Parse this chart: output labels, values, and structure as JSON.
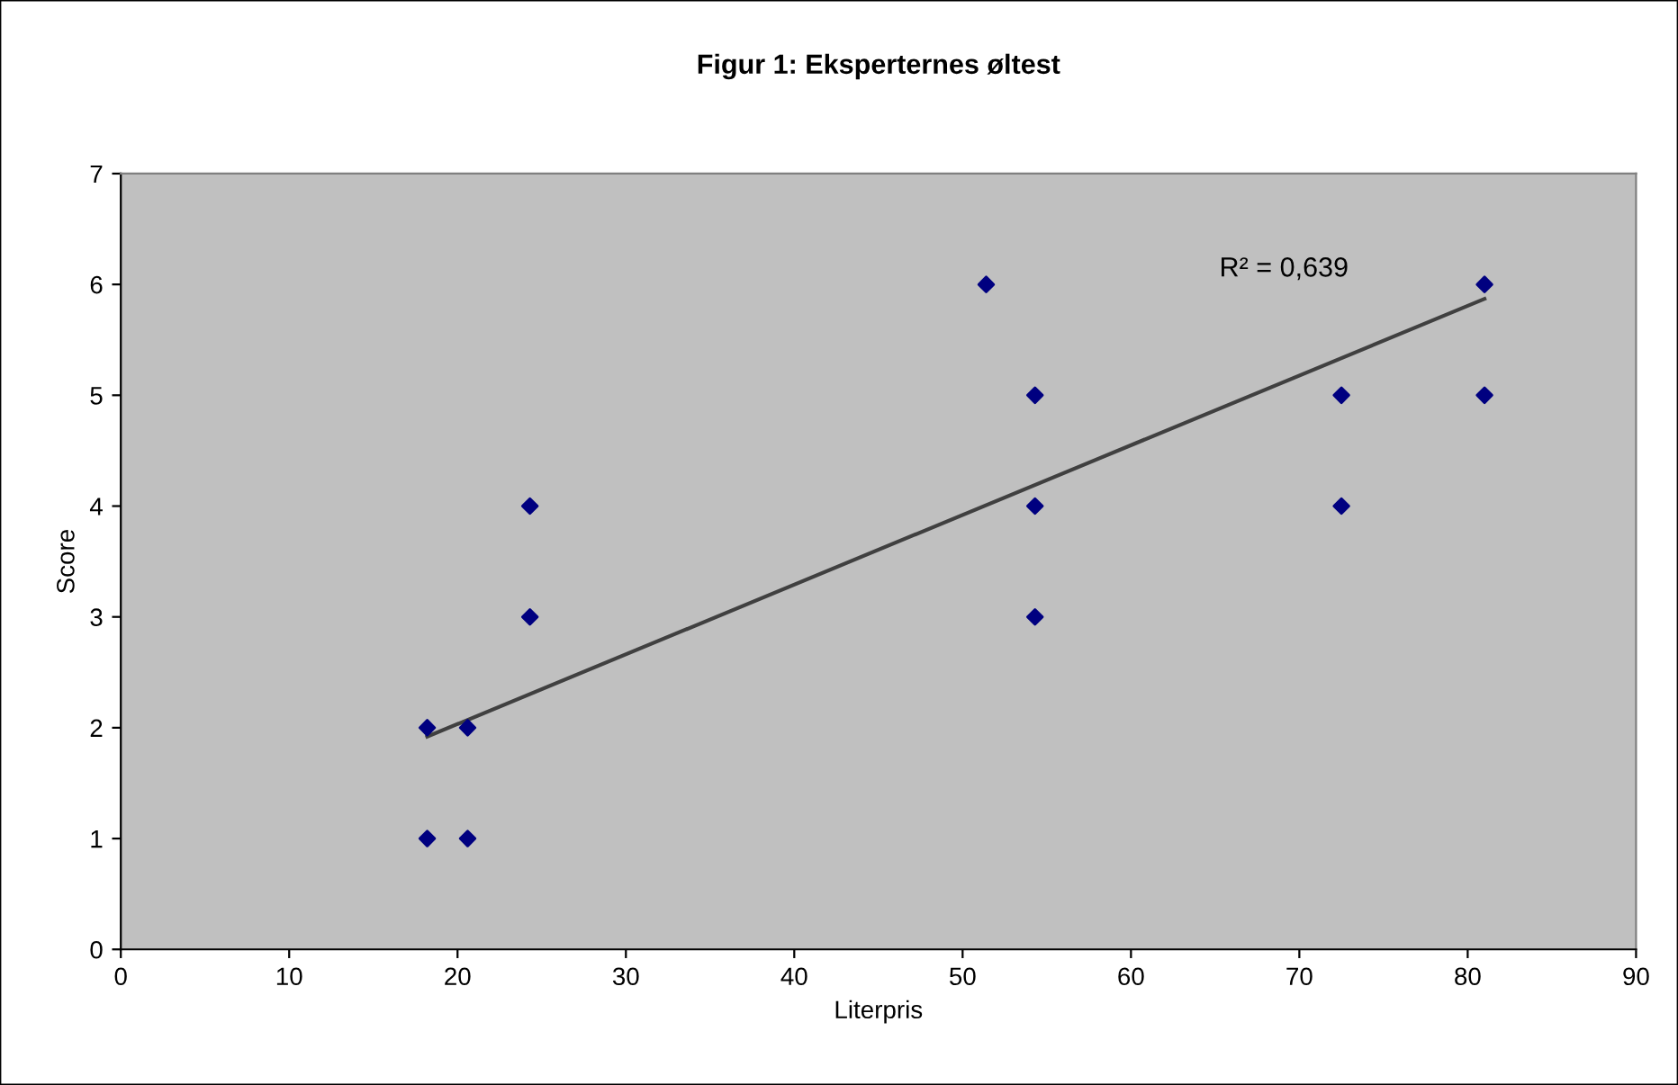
{
  "chart_data": {
    "type": "scatter",
    "title": "Figur 1: Eksperternes øltest",
    "xlabel": "Literpris",
    "ylabel": "Score",
    "xlim": [
      0,
      90
    ],
    "xticks": [
      0,
      10,
      20,
      30,
      40,
      50,
      60,
      70,
      80,
      90
    ],
    "ylim": [
      0,
      7
    ],
    "yticks": [
      0,
      1,
      2,
      3,
      4,
      5,
      6,
      7
    ],
    "grid": false,
    "legend": false,
    "series": [
      {
        "marker": "diamond",
        "color": "#000080",
        "x": [
          18.2,
          18.2,
          20.6,
          20.6,
          24.3,
          24.3,
          51.4,
          54.3,
          54.3,
          54.3,
          72.5,
          72.5,
          81.0,
          81.0
        ],
        "values": [
          2,
          1,
          2,
          1,
          4,
          3,
          6,
          5,
          4,
          3,
          5,
          4,
          6,
          5
        ]
      },
      {
        "type": "line",
        "color": "#404040",
        "x": [
          18.2,
          81.0
        ],
        "values": [
          1.92,
          5.87
        ]
      }
    ],
    "annotations": [
      "R² = 0,639"
    ]
  }
}
